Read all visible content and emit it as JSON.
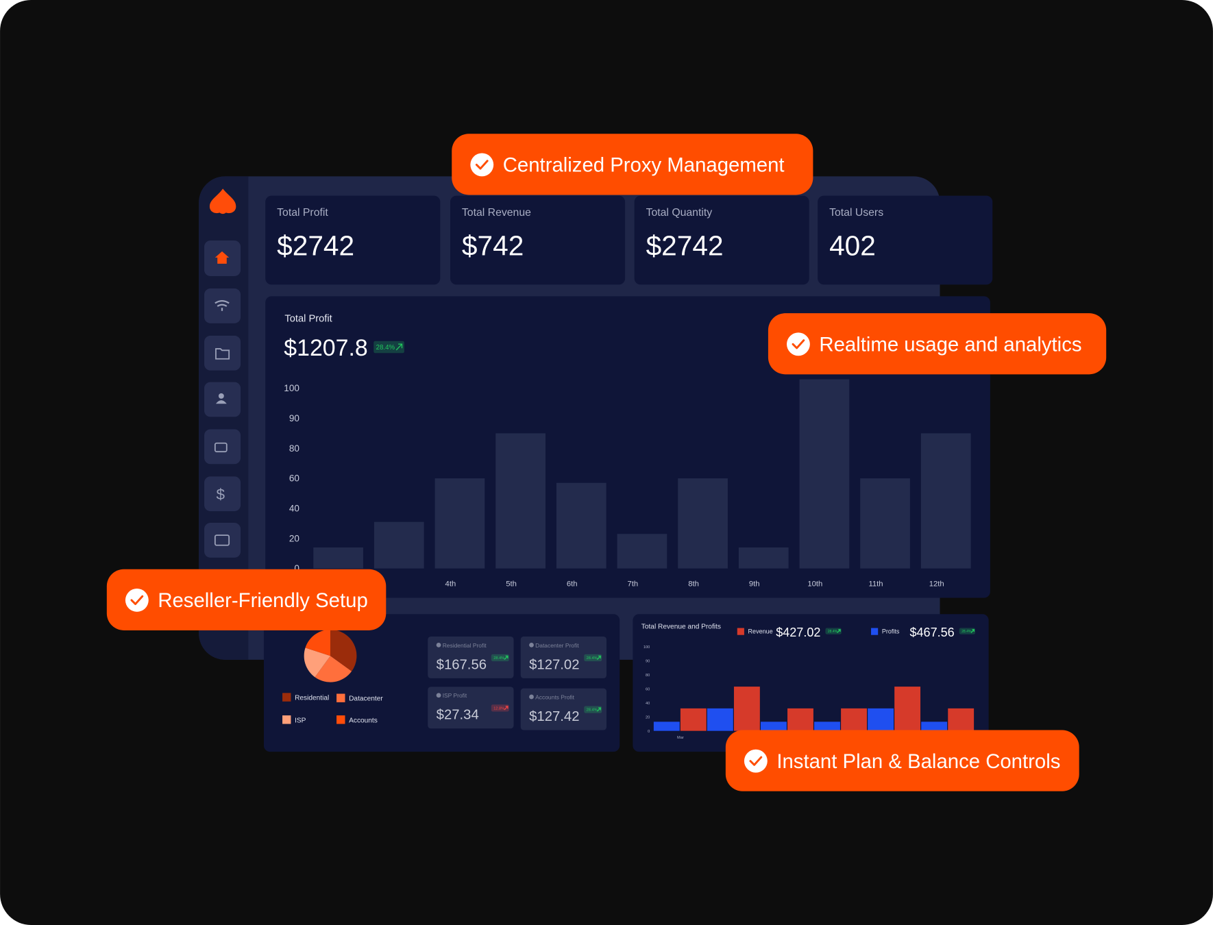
{
  "callouts": [
    "Centralized Proxy Management",
    "Realtime usage and analytics",
    "Reseller-Friendly Setup",
    "Instant Plan & Balance Controls"
  ],
  "stats": [
    {
      "label": "Total Profit",
      "value": "$2742"
    },
    {
      "label": "Total Revenue",
      "value": "$742"
    },
    {
      "label": "Total Quantity",
      "value": "$2742"
    },
    {
      "label": "Total Users",
      "value": "402"
    }
  ],
  "profit_chart": {
    "type": "bar",
    "title": "Total Profit",
    "total": "$1207.8",
    "change": "28.4%",
    "change_color": "#22c55e",
    "categories": [
      null,
      null,
      "4th",
      "5th",
      "6th",
      "7th",
      "8th",
      "9th",
      "10th",
      "11th",
      "12th"
    ],
    "values": [
      14,
      31,
      60,
      85,
      57,
      23,
      60,
      14,
      103,
      60,
      85
    ],
    "color": "#232b4d",
    "ylim": [
      0,
      100
    ],
    "yticks": [
      0,
      20,
      40,
      60,
      80,
      90,
      100
    ]
  },
  "pie_chart": {
    "type": "pie",
    "categories": [
      "Residential",
      "Datacenter",
      "ISP",
      "Accounts"
    ],
    "values": [
      35,
      25,
      20,
      20
    ],
    "colors": [
      "#9b2c0b",
      "#ff6f3c",
      "#ffa07a",
      "#ff4d0a"
    ]
  },
  "profit_cards": [
    {
      "label": "Residential Profit",
      "value": "$167.56",
      "change": "28.4%",
      "change_color": "#22c55e"
    },
    {
      "label": "Datacenter Profit",
      "value": "$127.02",
      "change": "28.4%",
      "change_color": "#22c55e"
    },
    {
      "label": "ISP Profit",
      "value": "$27.34",
      "change": "12.8%",
      "change_color": "#ef4444"
    },
    {
      "label": "Accounts Profit",
      "value": "$127.42",
      "change": "28.4%",
      "change_color": "#22c55e"
    }
  ],
  "revenue_chart": {
    "type": "bar",
    "title": "Total Revenue and Profits",
    "categories": [
      "Mar",
      null,
      null,
      null,
      null,
      null
    ],
    "series": [
      {
        "name": "Revenue",
        "color": "#d63a2a",
        "total": "$427.02",
        "change": "28.4%",
        "change_color": "#22c55e",
        "values": [
          32,
          63,
          32,
          32,
          63,
          32
        ]
      },
      {
        "name": "Profits",
        "color": "#1f4ff0",
        "total": "$467.56",
        "change": "28.4%",
        "change_color": "#22c55e",
        "values": [
          13,
          32,
          13,
          13,
          32,
          13
        ]
      }
    ],
    "ylim": [
      0,
      100
    ],
    "yticks": [
      0,
      20,
      40,
      60,
      80,
      90,
      100
    ]
  }
}
